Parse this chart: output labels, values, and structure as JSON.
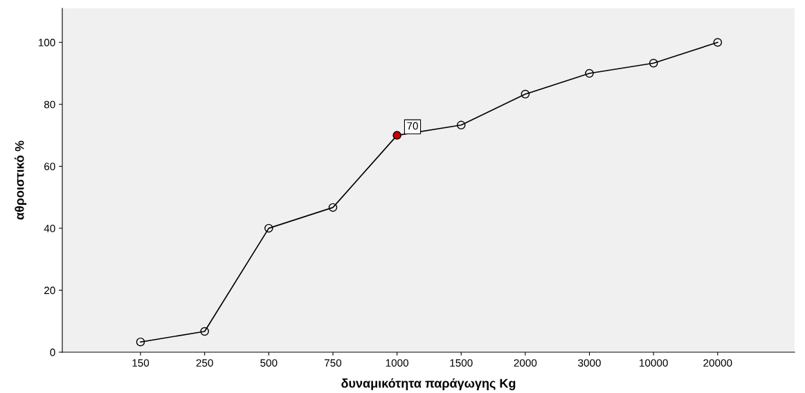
{
  "chart_data": {
    "type": "line",
    "xlabel": "δυναμικότητα παράγωγης Kg",
    "ylabel": "αθροιστικό %",
    "categories": [
      "150",
      "250",
      "500",
      "750",
      "1000",
      "1500",
      "2000",
      "3000",
      "10000",
      "20000"
    ],
    "series": [
      {
        "color": "#000000",
        "values": [
          3.3,
          6.7,
          40,
          46.7,
          70,
          73.3,
          83.3,
          90,
          93.3,
          100
        ],
        "colors": [
          null,
          null,
          null,
          null,
          "#cc0000",
          null,
          null,
          null,
          null,
          null
        ],
        "value_labels": [
          null,
          null,
          null,
          null,
          "70",
          null,
          null,
          null,
          null,
          null
        ]
      }
    ],
    "ylim": [
      0,
      111
    ],
    "yticks": [
      0,
      20,
      40,
      60,
      80,
      100
    ],
    "marker": "circle",
    "line_style": "solid",
    "grid": false,
    "legend": false
  }
}
